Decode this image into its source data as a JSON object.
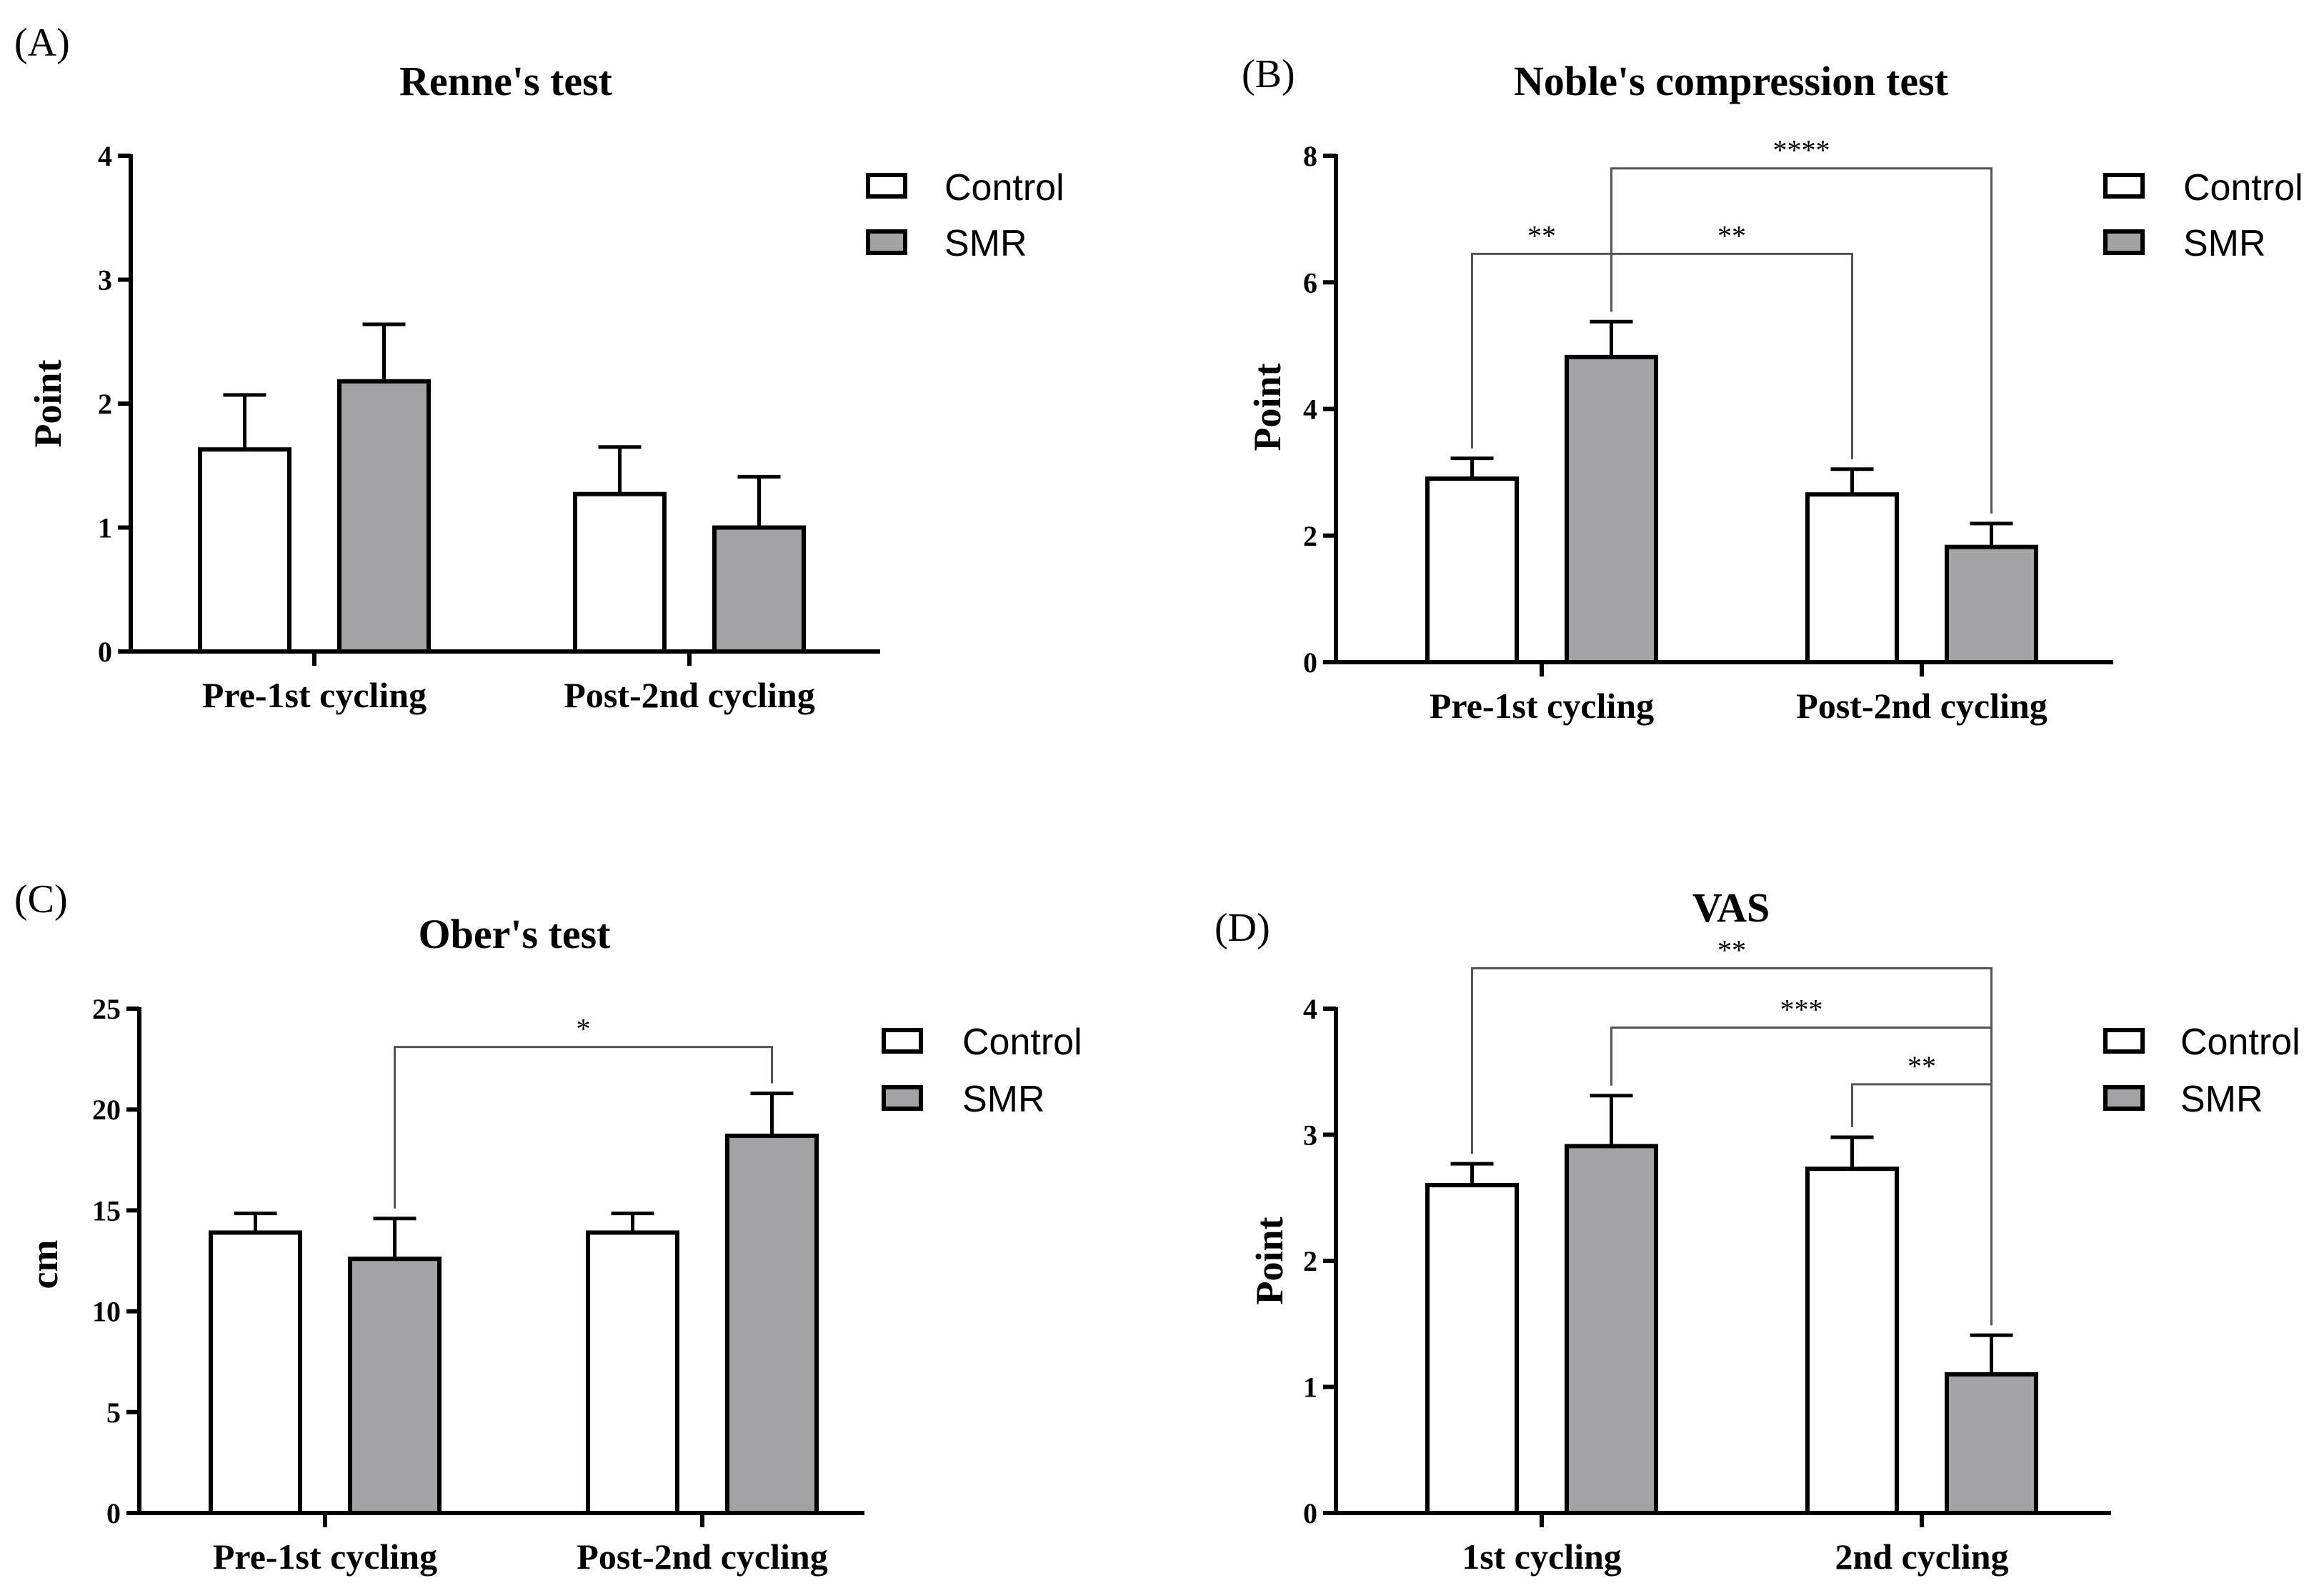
{
  "colors": {
    "control": "#ffffff",
    "smr": "#a3a3a6",
    "stroke": "#000000",
    "bracket": "#555555"
  },
  "chart_data": [
    {
      "panel": "(A)",
      "type": "bar",
      "title": "Renne's test",
      "ylabel": "Point",
      "xlabel": "",
      "ylim": [
        0,
        4
      ],
      "yticks": [
        0,
        1,
        2,
        3,
        4
      ],
      "categories": [
        "Pre-1st cycling",
        "Post-2nd cycling"
      ],
      "legend": [
        "Control",
        "SMR"
      ],
      "series": [
        {
          "name": "Control",
          "values": [
            1.63,
            1.27
          ],
          "errors": [
            0.44,
            0.38
          ]
        },
        {
          "name": "SMR",
          "values": [
            2.18,
            1.0
          ],
          "errors": [
            0.46,
            0.41
          ]
        }
      ],
      "significance": []
    },
    {
      "panel": "(B)",
      "type": "bar",
      "title": "Noble's compression test",
      "ylabel": "Point",
      "xlabel": "",
      "ylim": [
        0,
        8
      ],
      "yticks": [
        0,
        2,
        4,
        6,
        8
      ],
      "categories": [
        "Pre-1st cycling",
        "Post-2nd cycling"
      ],
      "legend": [
        "Control",
        "SMR"
      ],
      "series": [
        {
          "name": "Control",
          "values": [
            2.9,
            2.65
          ],
          "errors": [
            0.32,
            0.4
          ]
        },
        {
          "name": "SMR",
          "values": [
            4.82,
            1.82
          ],
          "errors": [
            0.56,
            0.37
          ]
        }
      ],
      "significance": [
        {
          "label": "**",
          "from": [
            0,
            0
          ],
          "to": [
            0,
            1
          ],
          "level": 6.45
        },
        {
          "label": "**",
          "from": [
            0,
            1
          ],
          "to": [
            1,
            0
          ],
          "level": 6.45
        },
        {
          "label": "****",
          "from": [
            0,
            1
          ],
          "to": [
            1,
            1
          ],
          "level": 7.8
        }
      ]
    },
    {
      "panel": "(C)",
      "type": "bar",
      "title": "Ober's test",
      "ylabel": "cm",
      "xlabel": "",
      "ylim": [
        0,
        25
      ],
      "yticks": [
        0,
        5,
        10,
        15,
        20,
        25
      ],
      "categories": [
        "Pre-1st cycling",
        "Post-2nd cycling"
      ],
      "legend": [
        "Control",
        "SMR"
      ],
      "series": [
        {
          "name": "Control",
          "values": [
            13.9,
            13.9
          ],
          "errors": [
            0.95,
            0.95
          ]
        },
        {
          "name": "SMR",
          "values": [
            12.6,
            18.7
          ],
          "errors": [
            2.0,
            2.1
          ]
        }
      ],
      "significance": [
        {
          "label": "*",
          "from": [
            0,
            1
          ],
          "to": [
            1,
            1
          ],
          "level": 23.1
        }
      ]
    },
    {
      "panel": "(D)",
      "type": "bar",
      "title": "VAS",
      "ylabel": "Point",
      "xlabel": "",
      "ylim": [
        0,
        4
      ],
      "yticks": [
        0,
        1,
        2,
        3,
        4
      ],
      "categories": [
        "1st cycling",
        "2nd cycling"
      ],
      "legend": [
        "Control",
        "SMR"
      ],
      "series": [
        {
          "name": "Control",
          "values": [
            2.6,
            2.73
          ],
          "errors": [
            0.17,
            0.25
          ]
        },
        {
          "name": "SMR",
          "values": [
            2.91,
            1.1
          ],
          "errors": [
            0.4,
            0.31
          ]
        }
      ],
      "significance": [
        {
          "label": "**",
          "from": [
            0,
            0
          ],
          "to": [
            1,
            1
          ],
          "level": 4.32
        },
        {
          "label": "***",
          "from": [
            0,
            1
          ],
          "to": [
            1,
            1
          ],
          "level": 3.85
        },
        {
          "label": "**",
          "from": [
            1,
            0
          ],
          "to": [
            1,
            1
          ],
          "level": 3.4
        }
      ]
    }
  ]
}
